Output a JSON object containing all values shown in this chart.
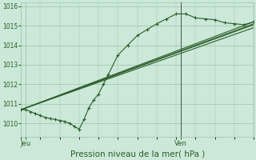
{
  "bg_color": "#cce8d8",
  "grid_color": "#99c4aa",
  "line_color": "#2a5e2a",
  "marker_color": "#2a5e2a",
  "xlabel": "Pression niveau de la mer( hPa )",
  "xlabel_fontsize": 7.5,
  "tick_label_color": "#2a5e2a",
  "ylabel_ticks": [
    1010,
    1011,
    1012,
    1013,
    1014,
    1015,
    1016
  ],
  "ylim": [
    1009.3,
    1016.2
  ],
  "xlim": [
    0,
    48
  ],
  "day_labels": [
    "Jeu",
    "Ven"
  ],
  "day_positions": [
    1,
    33
  ],
  "vline_x": 33,
  "series1_x": [
    0,
    1,
    2,
    3,
    4,
    5,
    6,
    7,
    8,
    9,
    10,
    11,
    12,
    13,
    14,
    15,
    16,
    17,
    18,
    20,
    22,
    24,
    26,
    28,
    30,
    32,
    34,
    36,
    38,
    40,
    42,
    44,
    46,
    48
  ],
  "series1_y": [
    1010.7,
    1010.7,
    1010.6,
    1010.5,
    1010.4,
    1010.3,
    1010.25,
    1010.2,
    1010.15,
    1010.1,
    1010.0,
    1009.85,
    1009.7,
    1010.2,
    1010.8,
    1011.2,
    1011.5,
    1012.0,
    1012.5,
    1013.5,
    1014.0,
    1014.5,
    1014.8,
    1015.1,
    1015.35,
    1015.6,
    1015.6,
    1015.4,
    1015.35,
    1015.3,
    1015.15,
    1015.1,
    1015.05,
    1015.2
  ],
  "series2_x": [
    0,
    48
  ],
  "series2_y": [
    1010.7,
    1015.2
  ],
  "series3_x": [
    0,
    48
  ],
  "series3_y": [
    1010.7,
    1015.1
  ],
  "series4_x": [
    0,
    48
  ],
  "series4_y": [
    1010.7,
    1015.05
  ],
  "series5_x": [
    0,
    48
  ],
  "series5_y": [
    1010.7,
    1014.9
  ]
}
